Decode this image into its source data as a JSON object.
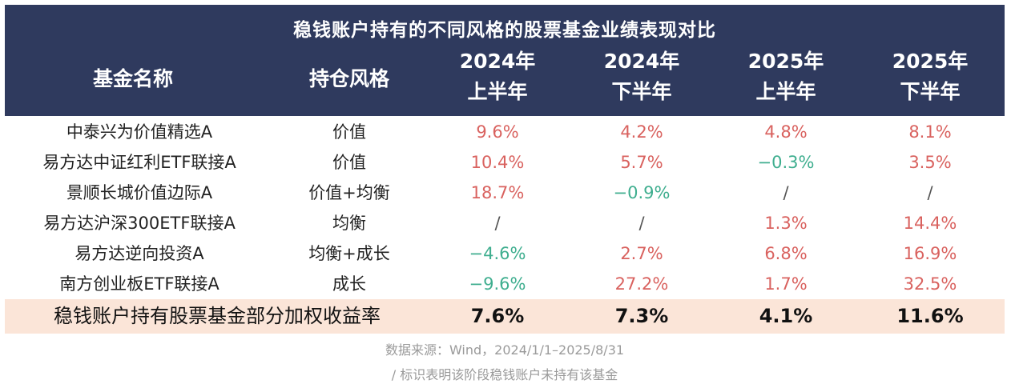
{
  "chart_data": {
    "type": "table",
    "title": "稳钱账户持有的不同风格的股票基金业绩表现对比",
    "columns": [
      {
        "label": "基金名称"
      },
      {
        "label": "持仓风格"
      },
      {
        "line1": "2024年",
        "line2": "上半年"
      },
      {
        "line1": "2024年",
        "line2": "下半年"
      },
      {
        "line1": "2025年",
        "line2": "上半年"
      },
      {
        "line1": "2025年",
        "line2": "下半年"
      }
    ],
    "rows": [
      {
        "name": "中泰兴为价值精选A",
        "style": "价值",
        "values": [
          "9.6%",
          "4.2%",
          "4.8%",
          "8.1%"
        ],
        "signs": [
          "pos",
          "pos",
          "pos",
          "pos"
        ]
      },
      {
        "name": "易方达中证红利ETF联接A",
        "style": "价值",
        "values": [
          "10.4%",
          "5.7%",
          "−0.3%",
          "3.5%"
        ],
        "signs": [
          "pos",
          "pos",
          "neg",
          "pos"
        ]
      },
      {
        "name": "景顺长城价值边际A",
        "style": "价值+均衡",
        "values": [
          "18.7%",
          "−0.9%",
          "/",
          "/"
        ],
        "signs": [
          "pos",
          "neg",
          "na",
          "na"
        ]
      },
      {
        "name": "易方达沪深300ETF联接A",
        "style": "均衡",
        "values": [
          "/",
          "/",
          "1.3%",
          "14.4%"
        ],
        "signs": [
          "na",
          "na",
          "pos",
          "pos"
        ]
      },
      {
        "name": "易方达逆向投资A",
        "style": "均衡+成长",
        "values": [
          "−4.6%",
          "2.7%",
          "6.8%",
          "16.9%"
        ],
        "signs": [
          "neg",
          "pos",
          "pos",
          "pos"
        ]
      },
      {
        "name": "南方创业板ETF联接A",
        "style": "成长",
        "values": [
          "−9.6%",
          "27.2%",
          "1.7%",
          "32.5%"
        ],
        "signs": [
          "neg",
          "pos",
          "pos",
          "pos"
        ]
      }
    ],
    "summary": {
      "label": "稳钱账户持有股票基金部分加权收益率",
      "values": [
        "7.6%",
        "7.3%",
        "4.1%",
        "11.6%"
      ]
    },
    "notes": [
      "数据来源：Wind，2024/1/1–2025/8/31",
      "/ 标识表明该阶段稳钱账户未持有该基金"
    ]
  },
  "colors": {
    "header_bg": "#2f3a5e",
    "positive": "#d9625f",
    "negative": "#3fae8f",
    "summary_bg": "#fbe5d8"
  }
}
